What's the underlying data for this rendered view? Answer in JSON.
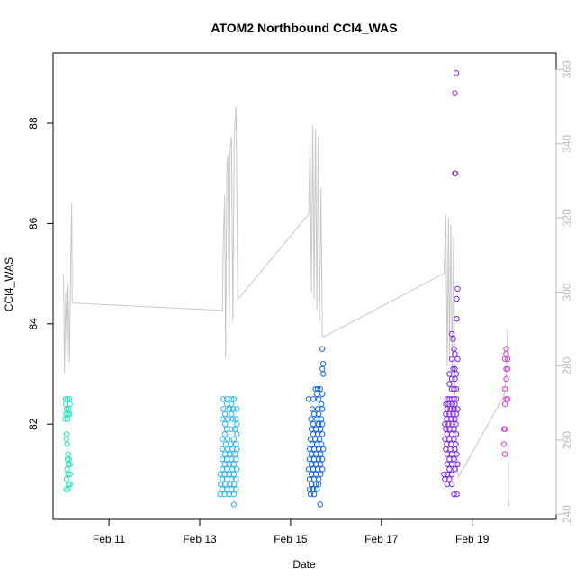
{
  "chart_data": {
    "type": "scatter",
    "title": "ATOM2 Northbound CCl4_WAS",
    "xlabel": "Date",
    "ylabel": "CCl4_WAS",
    "x_unit": "days in February (day of month)",
    "xlim": [
      9.77,
      20.85
    ],
    "ylim": [
      80.1,
      89.4
    ],
    "y2lim": [
      238.6,
      364.5
    ],
    "x_ticks": [
      {
        "value": 11,
        "label": "Feb 11"
      },
      {
        "value": 13,
        "label": "Feb 13"
      },
      {
        "value": 15,
        "label": "Feb 15"
      },
      {
        "value": 17,
        "label": "Feb 17"
      },
      {
        "value": 19,
        "label": "Feb 19"
      }
    ],
    "y_ticks": [
      82,
      84,
      86,
      88
    ],
    "y2_ticks": [
      240,
      260,
      280,
      300,
      320,
      340,
      360
    ],
    "grid": false,
    "legend": "none",
    "series": [
      {
        "color": "#1de9b6",
        "points": [
          [
            10.05,
            82.5
          ],
          [
            10.09,
            82.5
          ],
          [
            10.13,
            82.5
          ],
          [
            10.05,
            82.4
          ],
          [
            10.14,
            82.4
          ],
          [
            10.07,
            82.3
          ],
          [
            10.11,
            82.3
          ],
          [
            10.06,
            82.2
          ],
          [
            10.1,
            82.2
          ],
          [
            10.13,
            82.2
          ],
          [
            10.04,
            82.1
          ],
          [
            10.09,
            82.1
          ],
          [
            10.07,
            81.8
          ],
          [
            10.06,
            81.7
          ],
          [
            10.08,
            81.6
          ],
          [
            10.1,
            81.4
          ],
          [
            10.09,
            81.3
          ],
          [
            10.12,
            81.3
          ],
          [
            10.11,
            81.2
          ],
          [
            10.14,
            81.2
          ],
          [
            10.08,
            81.1
          ],
          [
            10.1,
            81.0
          ],
          [
            10.14,
            81.0
          ],
          [
            10.07,
            80.9
          ],
          [
            10.11,
            80.8
          ],
          [
            10.14,
            80.8
          ],
          [
            10.06,
            80.7
          ],
          [
            10.1,
            80.7
          ]
        ]
      },
      {
        "color": "#29b6f6",
        "points": [
          [
            13.52,
            82.5
          ],
          [
            13.6,
            82.5
          ],
          [
            13.7,
            82.5
          ],
          [
            13.75,
            82.5
          ],
          [
            13.6,
            82.4
          ],
          [
            13.7,
            82.4
          ],
          [
            13.52,
            82.3
          ],
          [
            13.65,
            82.3
          ],
          [
            13.74,
            82.3
          ],
          [
            13.82,
            82.3
          ],
          [
            13.56,
            82.2
          ],
          [
            13.7,
            82.2
          ],
          [
            13.5,
            82.1
          ],
          [
            13.62,
            82.1
          ],
          [
            13.73,
            82.1
          ],
          [
            13.8,
            82.1
          ],
          [
            13.56,
            82.0
          ],
          [
            13.82,
            82.0
          ],
          [
            13.6,
            81.9
          ],
          [
            13.7,
            81.9
          ],
          [
            13.78,
            81.9
          ],
          [
            13.55,
            81.8
          ],
          [
            13.82,
            81.8
          ],
          [
            13.5,
            81.7
          ],
          [
            13.62,
            81.7
          ],
          [
            13.75,
            81.7
          ],
          [
            13.58,
            81.6
          ],
          [
            13.68,
            81.6
          ],
          [
            13.8,
            81.6
          ],
          [
            13.5,
            81.5
          ],
          [
            13.62,
            81.5
          ],
          [
            13.72,
            81.5
          ],
          [
            13.82,
            81.5
          ],
          [
            13.56,
            81.4
          ],
          [
            13.66,
            81.4
          ],
          [
            13.78,
            81.4
          ],
          [
            13.5,
            81.3
          ],
          [
            13.6,
            81.3
          ],
          [
            13.7,
            81.3
          ],
          [
            13.8,
            81.3
          ],
          [
            13.55,
            81.2
          ],
          [
            13.65,
            81.2
          ],
          [
            13.75,
            81.2
          ],
          [
            13.5,
            81.1
          ],
          [
            13.6,
            81.1
          ],
          [
            13.72,
            81.1
          ],
          [
            13.82,
            81.1
          ],
          [
            13.45,
            81.0
          ],
          [
            13.55,
            81.0
          ],
          [
            13.65,
            81.0
          ],
          [
            13.75,
            81.0
          ],
          [
            13.5,
            80.9
          ],
          [
            13.6,
            80.9
          ],
          [
            13.7,
            80.9
          ],
          [
            13.8,
            80.9
          ],
          [
            13.46,
            80.8
          ],
          [
            13.56,
            80.8
          ],
          [
            13.66,
            80.8
          ],
          [
            13.76,
            80.8
          ],
          [
            13.5,
            80.7
          ],
          [
            13.6,
            80.7
          ],
          [
            13.7,
            80.7
          ],
          [
            13.8,
            80.7
          ],
          [
            13.45,
            80.6
          ],
          [
            13.55,
            80.6
          ],
          [
            13.65,
            80.6
          ],
          [
            13.75,
            80.6
          ],
          [
            13.75,
            80.4
          ]
        ]
      },
      {
        "color": "#1565f0",
        "points": [
          [
            15.7,
            83.5
          ],
          [
            15.72,
            83.2
          ],
          [
            15.7,
            83.1
          ],
          [
            15.72,
            83.0
          ],
          [
            15.55,
            82.7
          ],
          [
            15.6,
            82.7
          ],
          [
            15.65,
            82.7
          ],
          [
            15.4,
            82.5
          ],
          [
            15.58,
            82.6
          ],
          [
            15.7,
            82.6
          ],
          [
            15.5,
            82.5
          ],
          [
            15.62,
            82.5
          ],
          [
            15.68,
            82.4
          ],
          [
            15.48,
            82.3
          ],
          [
            15.6,
            82.3
          ],
          [
            15.7,
            82.3
          ],
          [
            15.52,
            82.2
          ],
          [
            15.62,
            82.2
          ],
          [
            15.45,
            82.1
          ],
          [
            15.58,
            82.1
          ],
          [
            15.68,
            82.1
          ],
          [
            15.5,
            82.0
          ],
          [
            15.62,
            82.0
          ],
          [
            15.7,
            82.0
          ],
          [
            15.46,
            81.9
          ],
          [
            15.56,
            81.9
          ],
          [
            15.66,
            81.9
          ],
          [
            15.5,
            81.8
          ],
          [
            15.6,
            81.8
          ],
          [
            15.7,
            81.8
          ],
          [
            15.44,
            81.7
          ],
          [
            15.54,
            81.7
          ],
          [
            15.64,
            81.7
          ],
          [
            15.48,
            81.6
          ],
          [
            15.58,
            81.6
          ],
          [
            15.68,
            81.6
          ],
          [
            15.42,
            81.5
          ],
          [
            15.52,
            81.5
          ],
          [
            15.62,
            81.5
          ],
          [
            15.72,
            81.5
          ],
          [
            15.46,
            81.4
          ],
          [
            15.56,
            81.4
          ],
          [
            15.66,
            81.4
          ],
          [
            15.42,
            81.3
          ],
          [
            15.52,
            81.3
          ],
          [
            15.62,
            81.3
          ],
          [
            15.7,
            81.3
          ],
          [
            15.46,
            81.2
          ],
          [
            15.56,
            81.2
          ],
          [
            15.66,
            81.2
          ],
          [
            15.4,
            81.1
          ],
          [
            15.5,
            81.1
          ],
          [
            15.6,
            81.1
          ],
          [
            15.7,
            81.1
          ],
          [
            15.46,
            81.0
          ],
          [
            15.56,
            81.0
          ],
          [
            15.66,
            81.0
          ],
          [
            15.42,
            80.9
          ],
          [
            15.52,
            80.9
          ],
          [
            15.62,
            80.9
          ],
          [
            15.46,
            80.8
          ],
          [
            15.56,
            80.8
          ],
          [
            15.62,
            80.8
          ],
          [
            15.42,
            80.7
          ],
          [
            15.5,
            80.7
          ],
          [
            15.58,
            80.7
          ],
          [
            15.44,
            80.6
          ],
          [
            15.52,
            80.6
          ],
          [
            15.65,
            80.4
          ]
        ]
      },
      {
        "color": "#7c2ae8",
        "points": [
          [
            18.65,
            89.0
          ],
          [
            18.62,
            88.6
          ],
          [
            18.62,
            87.0
          ],
          [
            18.63,
            87.0
          ],
          [
            18.68,
            84.7
          ],
          [
            18.66,
            84.5
          ],
          [
            18.66,
            84.1
          ],
          [
            18.55,
            83.8
          ],
          [
            18.58,
            83.7
          ],
          [
            18.6,
            83.5
          ],
          [
            18.62,
            83.4
          ],
          [
            18.55,
            83.3
          ],
          [
            18.68,
            83.3
          ],
          [
            18.58,
            83.1
          ],
          [
            18.62,
            83.1
          ],
          [
            18.5,
            83.0
          ],
          [
            18.65,
            83.0
          ],
          [
            18.55,
            82.9
          ],
          [
            18.62,
            82.9
          ],
          [
            18.5,
            82.8
          ],
          [
            18.55,
            82.7
          ],
          [
            18.6,
            82.7
          ],
          [
            18.65,
            82.7
          ],
          [
            18.45,
            82.5
          ],
          [
            18.5,
            82.5
          ],
          [
            18.55,
            82.5
          ],
          [
            18.6,
            82.5
          ],
          [
            18.65,
            82.5
          ],
          [
            18.42,
            82.4
          ],
          [
            18.48,
            82.4
          ],
          [
            18.56,
            82.4
          ],
          [
            18.62,
            82.4
          ],
          [
            18.45,
            82.3
          ],
          [
            18.52,
            82.3
          ],
          [
            18.6,
            82.3
          ],
          [
            18.68,
            82.3
          ],
          [
            18.42,
            82.2
          ],
          [
            18.5,
            82.2
          ],
          [
            18.58,
            82.2
          ],
          [
            18.65,
            82.2
          ],
          [
            18.44,
            82.1
          ],
          [
            18.54,
            82.1
          ],
          [
            18.62,
            82.1
          ],
          [
            18.4,
            82.0
          ],
          [
            18.48,
            82.0
          ],
          [
            18.56,
            82.0
          ],
          [
            18.64,
            82.0
          ],
          [
            18.42,
            81.9
          ],
          [
            18.5,
            81.9
          ],
          [
            18.6,
            81.9
          ],
          [
            18.45,
            81.8
          ],
          [
            18.55,
            81.8
          ],
          [
            18.65,
            81.8
          ],
          [
            18.4,
            81.7
          ],
          [
            18.5,
            81.7
          ],
          [
            18.6,
            81.7
          ],
          [
            18.44,
            81.6
          ],
          [
            18.54,
            81.6
          ],
          [
            18.64,
            81.6
          ],
          [
            18.42,
            81.5
          ],
          [
            18.52,
            81.5
          ],
          [
            18.62,
            81.5
          ],
          [
            18.45,
            81.4
          ],
          [
            18.55,
            81.4
          ],
          [
            18.66,
            81.4
          ],
          [
            18.5,
            81.3
          ],
          [
            18.6,
            81.3
          ],
          [
            18.45,
            81.2
          ],
          [
            18.55,
            81.2
          ],
          [
            18.68,
            81.2
          ],
          [
            18.5,
            81.1
          ],
          [
            18.62,
            81.1
          ],
          [
            18.38,
            81.0
          ],
          [
            18.45,
            81.0
          ],
          [
            18.55,
            81.0
          ],
          [
            18.4,
            80.9
          ],
          [
            18.5,
            80.9
          ],
          [
            18.45,
            80.8
          ],
          [
            18.55,
            80.8
          ],
          [
            18.6,
            80.6
          ],
          [
            18.66,
            80.6
          ]
        ]
      },
      {
        "color": "#d63fd6",
        "points": [
          [
            19.75,
            83.5
          ],
          [
            19.75,
            83.4
          ],
          [
            19.78,
            83.3
          ],
          [
            19.72,
            83.3
          ],
          [
            19.75,
            83.1
          ],
          [
            19.78,
            83.1
          ],
          [
            19.75,
            82.9
          ],
          [
            19.72,
            82.7
          ],
          [
            19.78,
            82.5
          ],
          [
            19.75,
            82.5
          ],
          [
            19.72,
            82.4
          ],
          [
            19.7,
            81.9
          ],
          [
            19.72,
            81.9
          ],
          [
            19.7,
            81.6
          ],
          [
            19.72,
            81.4
          ]
        ]
      }
    ],
    "secondary_line": {
      "color": "#c8c8c8",
      "axis": "right",
      "points": [
        [
          10.0,
          305
        ],
        [
          10.02,
          278
        ],
        [
          10.05,
          300
        ],
        [
          10.08,
          281
        ],
        [
          10.1,
          302
        ],
        [
          10.13,
          281
        ],
        [
          10.16,
          311
        ],
        [
          10.18,
          324
        ],
        [
          10.19,
          297
        ],
        [
          13.5,
          295
        ],
        [
          13.52,
          314
        ],
        [
          13.55,
          326
        ],
        [
          13.57,
          282
        ],
        [
          13.6,
          334
        ],
        [
          13.62,
          337
        ],
        [
          13.65,
          290
        ],
        [
          13.67,
          339
        ],
        [
          13.7,
          342
        ],
        [
          13.73,
          292
        ],
        [
          13.76,
          342
        ],
        [
          13.8,
          350
        ],
        [
          13.84,
          298
        ],
        [
          15.4,
          321
        ],
        [
          15.43,
          342
        ],
        [
          15.46,
          300
        ],
        [
          15.49,
          345
        ],
        [
          15.52,
          298
        ],
        [
          15.55,
          344
        ],
        [
          15.58,
          295
        ],
        [
          15.61,
          342
        ],
        [
          15.64,
          292
        ],
        [
          15.67,
          328
        ],
        [
          15.7,
          288
        ],
        [
          15.75,
          288
        ],
        [
          18.38,
          305
        ],
        [
          18.42,
          321
        ],
        [
          18.45,
          280
        ],
        [
          18.48,
          320
        ],
        [
          18.5,
          282
        ],
        [
          18.53,
          318
        ],
        [
          18.56,
          278
        ],
        [
          18.59,
          315
        ],
        [
          18.62,
          272
        ],
        [
          18.65,
          260
        ],
        [
          18.68,
          252
        ],
        [
          18.7,
          250
        ],
        [
          19.7,
          272
        ],
        [
          19.75,
          277
        ],
        [
          19.78,
          290
        ],
        [
          19.8,
          242
        ],
        [
          19.82,
          243
        ]
      ]
    }
  }
}
